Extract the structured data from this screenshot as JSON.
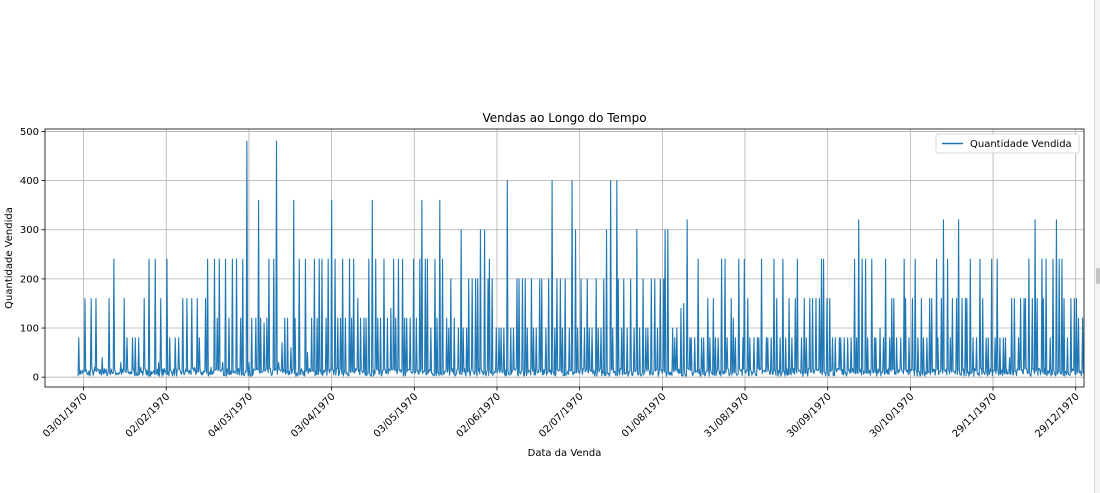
{
  "chart_data": {
    "type": "line",
    "title": "Vendas ao Longo do Tempo",
    "xlabel": "Data da Venda",
    "ylabel": "Quantidade Vendida",
    "ylim": [
      -20,
      505
    ],
    "xlim": [
      "1969-12-20",
      "1971-01-01"
    ],
    "yticks": [
      0,
      100,
      200,
      300,
      400,
      500
    ],
    "xticks": [
      "1970-01-03",
      "1970-02-02",
      "1970-03-04",
      "1970-04-03",
      "1970-05-03",
      "1970-06-02",
      "1970-07-02",
      "1970-08-01",
      "1970-08-31",
      "1970-09-30",
      "1970-10-30",
      "1970-11-29",
      "1970-12-29"
    ],
    "xtick_labels": [
      "03/01/1970",
      "02/02/1970",
      "04/03/1970",
      "03/04/1970",
      "03/05/1970",
      "02/06/1970",
      "02/07/1970",
      "01/08/1970",
      "31/08/1970",
      "30/09/1970",
      "30/10/1970",
      "29/11/1970",
      "29/12/1970"
    ],
    "grid": true,
    "legend_position": "top-right",
    "series": [
      {
        "name": "Quantidade Vendida",
        "color": "#1f77b4",
        "x_start": "1970-01-01",
        "x_end": "1970-12-31",
        "points_per_day": 4,
        "baseline": [
          2,
          18
        ],
        "values": [
          80,
          10,
          160,
          5,
          160,
          20,
          160,
          15,
          40,
          8,
          160,
          10,
          240,
          5,
          30,
          160,
          80,
          10,
          80,
          80,
          80,
          20,
          160,
          5,
          240,
          10,
          240,
          30,
          160,
          5,
          240,
          80,
          10,
          80,
          80,
          160,
          5,
          160,
          160,
          20,
          160,
          80,
          10,
          160,
          240,
          20,
          240,
          120,
          240,
          30,
          240,
          120,
          240,
          10,
          240,
          120,
          240,
          480,
          30,
          120,
          120,
          360,
          120,
          110,
          120,
          240,
          240,
          480,
          30,
          70,
          120,
          120,
          60,
          360,
          120,
          240,
          10,
          240,
          50,
          120,
          240,
          120,
          240,
          240,
          120,
          240,
          360,
          240,
          120,
          120,
          240,
          120,
          240,
          120,
          240,
          160,
          120,
          120,
          120,
          240,
          360,
          240,
          120,
          120,
          240,
          120,
          140,
          240,
          120,
          240,
          240,
          120,
          120,
          120,
          240,
          120,
          240,
          360,
          240,
          240,
          100,
          240,
          120,
          360,
          240,
          120,
          100,
          200,
          120,
          100,
          300,
          100,
          100,
          200,
          200,
          200,
          200,
          300,
          300,
          200,
          240,
          200,
          100,
          100,
          100,
          100,
          400,
          100,
          100,
          200,
          200,
          200,
          200,
          100,
          200,
          100,
          100,
          200,
          200,
          100,
          200,
          400,
          100,
          200,
          200,
          100,
          200,
          100,
          400,
          300,
          100,
          200,
          100,
          200,
          100,
          100,
          200,
          100,
          100,
          200,
          300,
          400,
          100,
          400,
          200,
          100,
          200,
          100,
          200,
          100,
          300,
          100,
          200,
          100,
          100,
          200,
          200,
          100,
          200,
          200,
          300,
          300,
          100,
          80,
          100,
          140,
          150,
          320,
          80,
          80,
          80,
          240,
          80,
          80,
          160,
          80,
          160,
          80,
          80,
          240,
          240,
          80,
          160,
          120,
          80,
          240,
          80,
          240,
          160,
          80,
          80,
          80,
          80,
          240,
          80,
          80,
          80,
          240,
          160,
          80,
          240,
          80,
          160,
          80,
          160,
          240,
          80,
          160,
          80,
          160,
          160,
          160,
          160,
          240,
          240,
          160,
          160,
          80,
          80,
          80,
          80,
          80,
          80,
          80,
          240,
          80,
          320,
          240,
          240,
          80,
          240,
          80,
          80,
          100,
          80,
          240,
          80,
          160,
          160,
          80,
          80,
          240,
          160,
          80,
          160,
          240,
          80,
          160,
          80,
          80,
          160,
          160,
          240,
          80,
          160,
          320,
          240,
          80,
          160,
          160,
          320,
          160,
          160,
          160,
          240,
          80,
          80,
          240,
          160,
          80,
          80,
          240,
          80,
          240,
          80,
          80,
          80,
          40,
          160,
          160,
          80,
          160,
          160,
          160,
          240,
          160,
          320,
          160,
          240,
          160,
          240,
          80,
          240,
          320,
          240,
          240,
          160,
          80,
          160,
          160,
          160,
          120,
          120
        ]
      }
    ]
  }
}
